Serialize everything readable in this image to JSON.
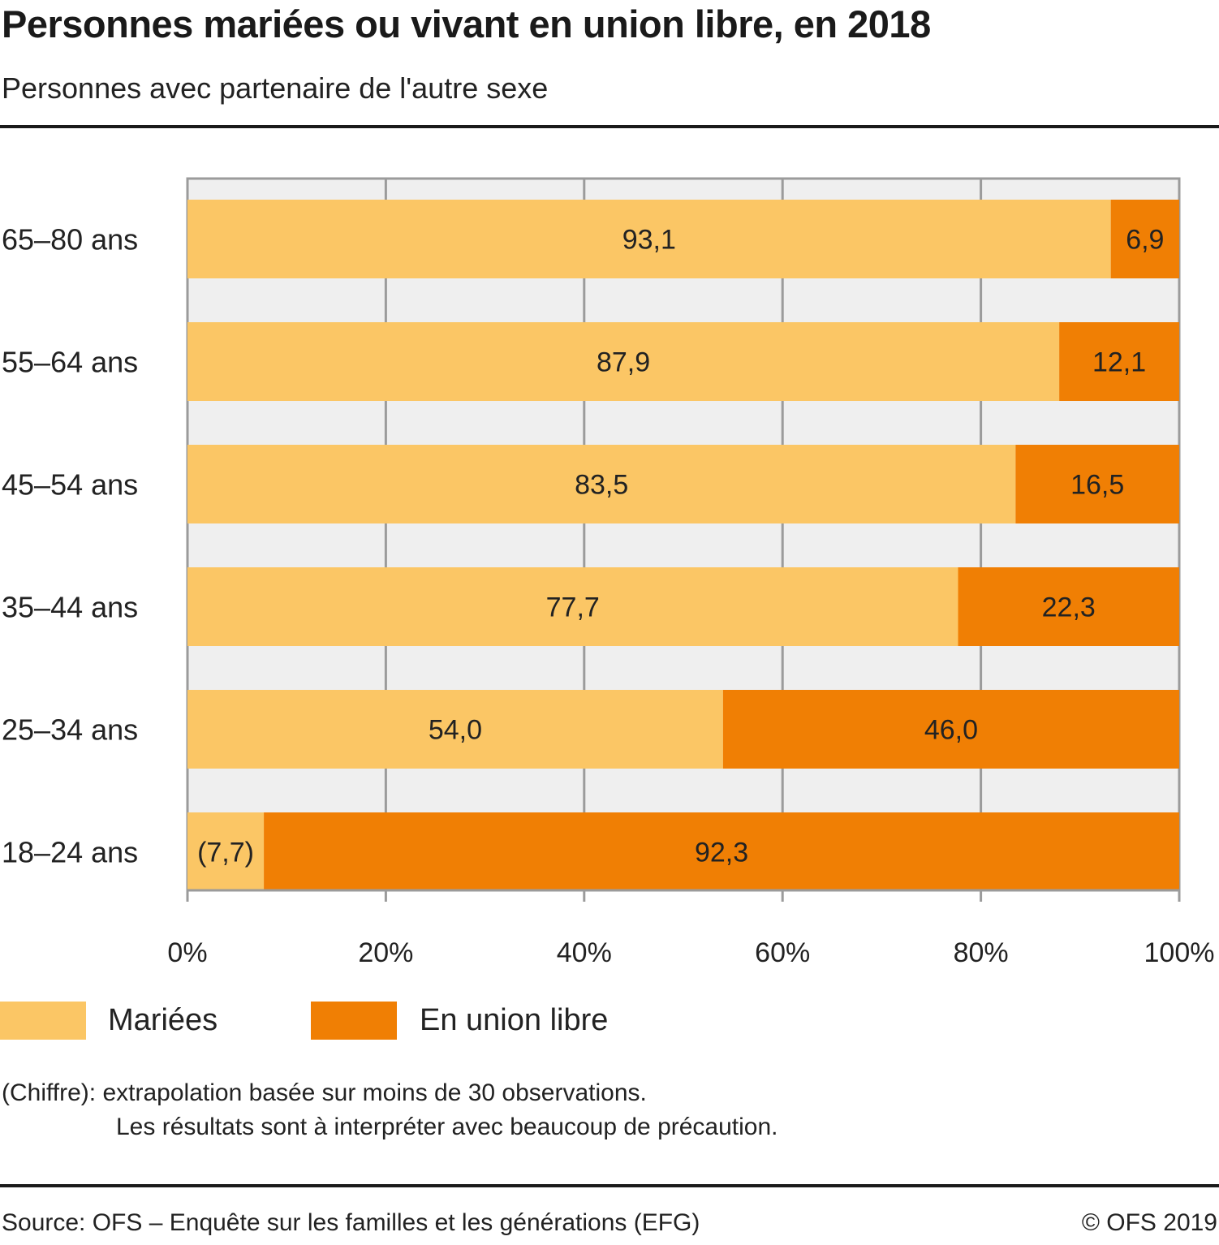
{
  "header": {
    "title": "Personnes mariées ou vivant en union libre, en 2018",
    "subtitle": "Personnes avec partenaire de l'autre sexe"
  },
  "colors": {
    "married": "#FBC665",
    "union_libre": "#F07F04",
    "plot_background": "#EFEFEF",
    "grid": "#9B9B9B"
  },
  "chart_data": {
    "type": "bar",
    "orientation": "horizontal",
    "stacked": true,
    "title": "Personnes mariées ou vivant en union libre, en 2018",
    "subtitle": "Personnes avec partenaire de l'autre sexe",
    "categories": [
      "65–80 ans",
      "55–64 ans",
      "45–54 ans",
      "35–44 ans",
      "25–34 ans",
      "18–24 ans"
    ],
    "series": [
      {
        "name": "Mariées",
        "values": [
          93.1,
          87.9,
          83.5,
          77.7,
          54.0,
          7.7
        ],
        "labels": [
          "93,1",
          "87,9",
          "83,5",
          "77,7",
          "54,0",
          "(7,7)"
        ]
      },
      {
        "name": "En union libre",
        "values": [
          6.9,
          12.1,
          16.5,
          22.3,
          46.0,
          92.3
        ],
        "labels": [
          "6,9",
          "12,1",
          "16,5",
          "22,3",
          "46,0",
          "92,3"
        ]
      }
    ],
    "xlabel": "",
    "ylabel": "",
    "xlim": [
      0,
      100
    ],
    "xticks": [
      0,
      20,
      40,
      60,
      80,
      100
    ],
    "xtick_labels": [
      "0%",
      "20%",
      "40%",
      "60%",
      "80%",
      "100%"
    ],
    "grid": true,
    "legend_position": "bottom-left"
  },
  "legend": {
    "items": [
      {
        "label": "Mariées"
      },
      {
        "label": "En union libre"
      }
    ]
  },
  "notes": {
    "line1": "(Chiffre): extrapolation basée sur moins de 30 observations.",
    "line2": "Les résultats sont à interpréter avec beaucoup de précaution."
  },
  "footer": {
    "source": "Source: OFS – Enquête sur les familles et les générations (EFG)",
    "copyright": "© OFS 2019"
  }
}
